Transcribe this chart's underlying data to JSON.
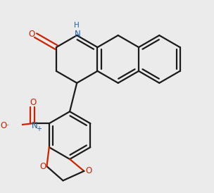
{
  "bg": "#ebebeb",
  "bc": "#1a1a1a",
  "nc": "#1a5fa8",
  "oc": "#cc2200",
  "lw": 1.6,
  "lw_dbl": 1.5
}
